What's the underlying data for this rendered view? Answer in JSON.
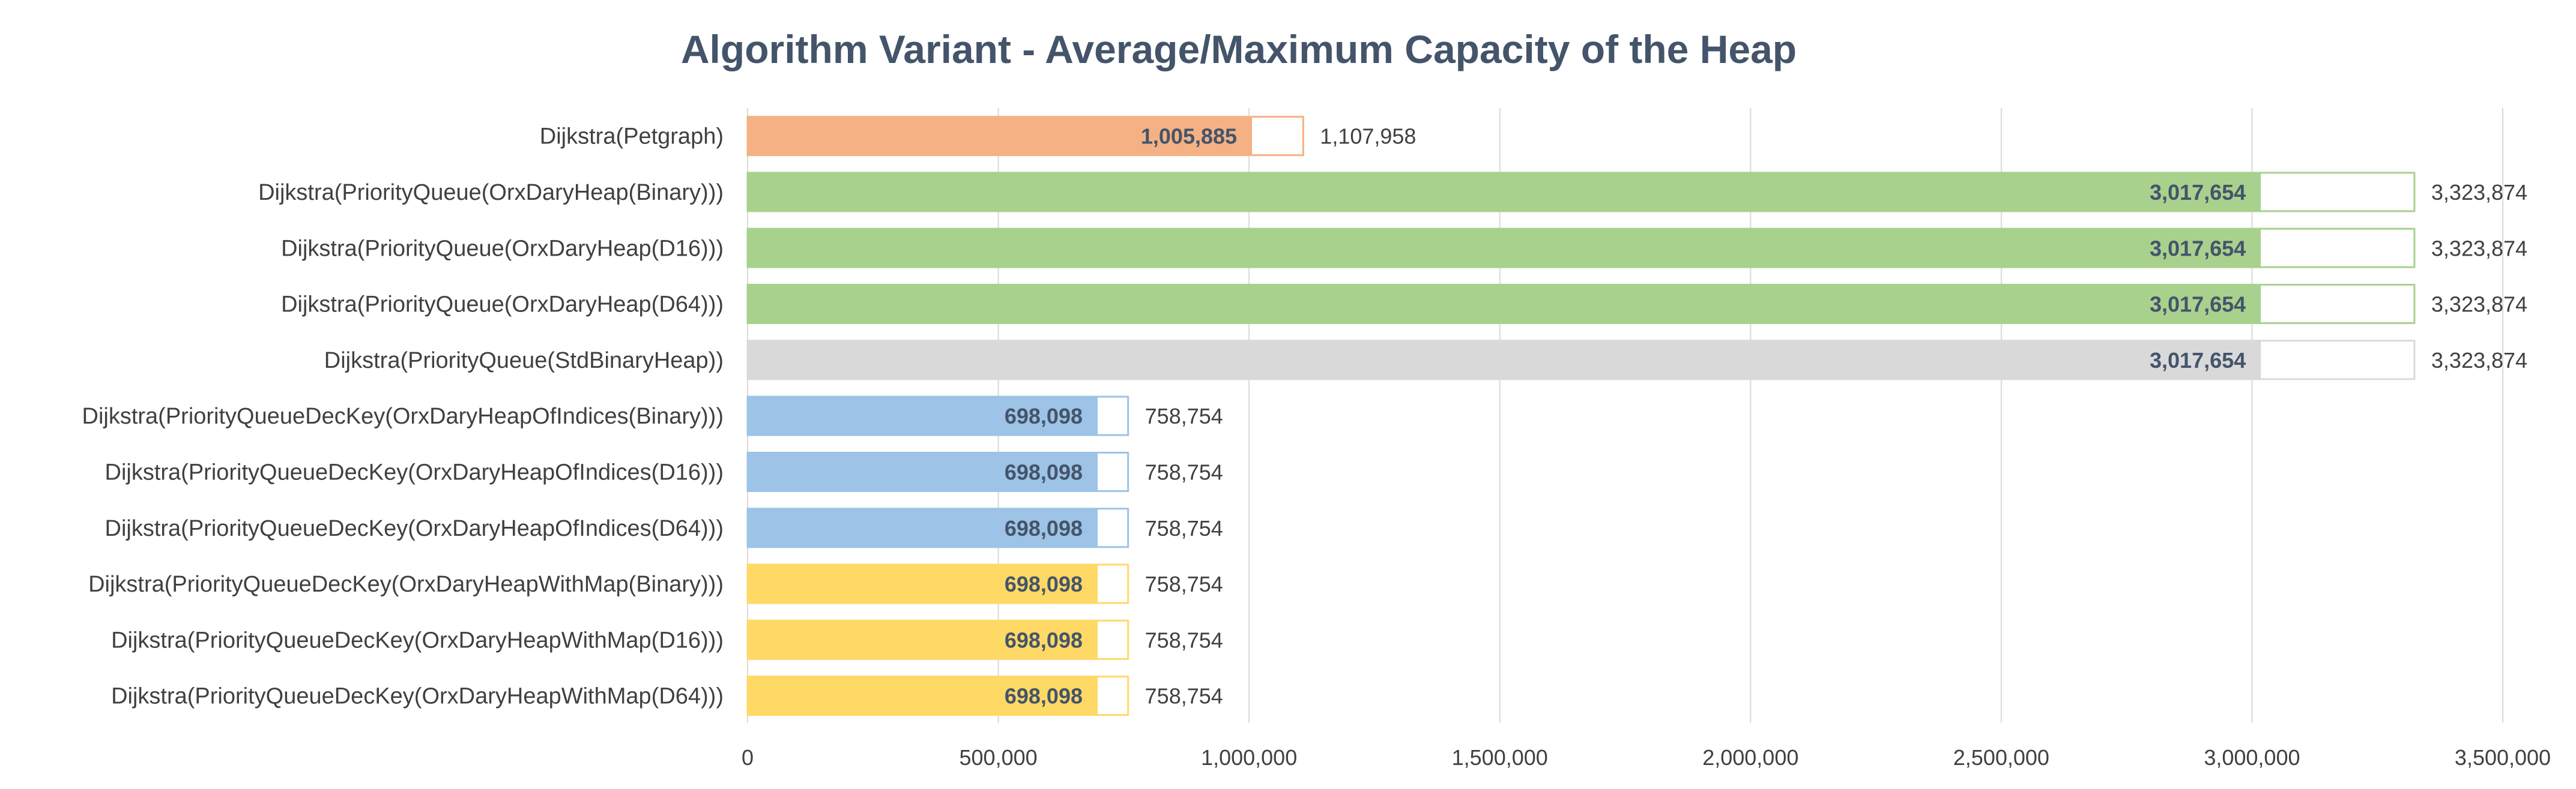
{
  "chart_data": {
    "type": "bar",
    "orientation": "horizontal",
    "title": "Algorithm Variant - Average/Maximum Capacity of the Heap",
    "xlim": [
      0,
      3500000
    ],
    "x_ticks": [
      0,
      500000,
      1000000,
      1500000,
      2000000,
      2500000,
      3000000,
      3500000
    ],
    "x_tick_labels": [
      "0",
      "500,000",
      "1,000,000",
      "1,500,000",
      "2,000,000",
      "2,500,000",
      "3,000,000",
      "3,500,000"
    ],
    "grid": true,
    "legend": "none",
    "categories": [
      "Dijkstra(Petgraph)",
      "Dijkstra(PriorityQueue(OrxDaryHeap(Binary)))",
      "Dijkstra(PriorityQueue(OrxDaryHeap(D16)))",
      "Dijkstra(PriorityQueue(OrxDaryHeap(D64)))",
      "Dijkstra(PriorityQueue(StdBinaryHeap))",
      "Dijkstra(PriorityQueueDecKey(OrxDaryHeapOfIndices(Binary)))",
      "Dijkstra(PriorityQueueDecKey(OrxDaryHeapOfIndices(D16)))",
      "Dijkstra(PriorityQueueDecKey(OrxDaryHeapOfIndices(D64)))",
      "Dijkstra(PriorityQueueDecKey(OrxDaryHeapWithMap(Binary)))",
      "Dijkstra(PriorityQueueDecKey(OrxDaryHeapWithMap(D16)))",
      "Dijkstra(PriorityQueueDecKey(OrxDaryHeapWithMap(D64)))"
    ],
    "series": [
      {
        "values": [
          1005885,
          3017654,
          3017654,
          3017654,
          3017654,
          698098,
          698098,
          698098,
          698098,
          698098,
          698098
        ],
        "labels": [
          "1,005,885",
          "3,017,654",
          "3,017,654",
          "3,017,654",
          "3,017,654",
          "698,098",
          "698,098",
          "698,098",
          "698,098",
          "698,098",
          "698,098"
        ]
      },
      {
        "values": [
          1107958,
          3323874,
          3323874,
          3323874,
          3323874,
          758754,
          758754,
          758754,
          758754,
          758754,
          758754
        ],
        "labels": [
          "1,107,958",
          "3,323,874",
          "3,323,874",
          "3,323,874",
          "3,323,874",
          "758,754",
          "758,754",
          "758,754",
          "758,754",
          "758,754",
          "758,754"
        ]
      }
    ],
    "colors": {
      "fill": [
        "#f4b183",
        "#a9d18e",
        "#a9d18e",
        "#a9d18e",
        "#d9d9d9",
        "#9dc3e6",
        "#9dc3e6",
        "#9dc3e6",
        "#ffd966",
        "#ffd966",
        "#ffd966"
      ],
      "outline": [
        "#f4b183",
        "#a9d18e",
        "#a9d18e",
        "#a9d18e",
        "#d9d9d9",
        "#9dc3e6",
        "#9dc3e6",
        "#9dc3e6",
        "#ffd966",
        "#ffd966",
        "#ffd966"
      ],
      "gridline": "#d9d9d9",
      "title": "#44546a",
      "avg_label": "#44546a",
      "text": "#404040"
    }
  }
}
